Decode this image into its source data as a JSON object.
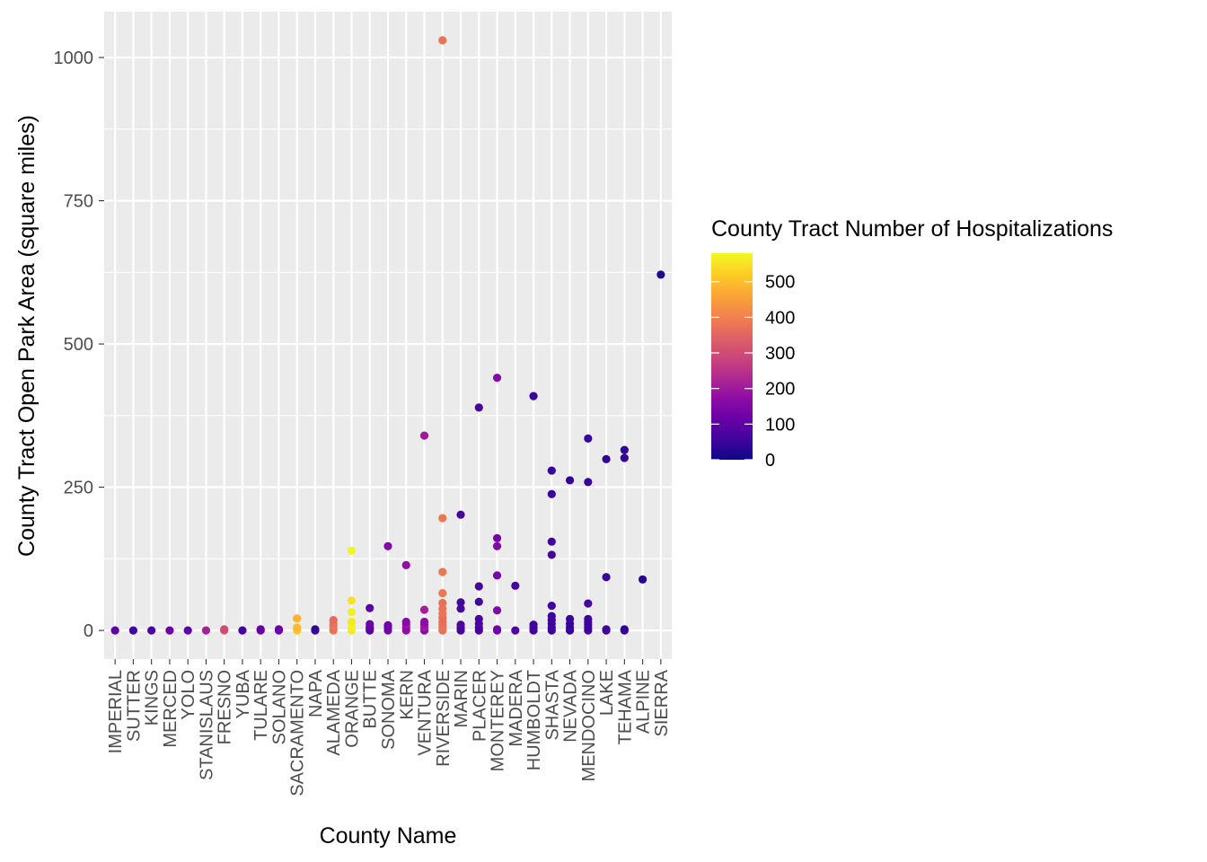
{
  "chart_data": {
    "type": "scatter",
    "xlabel": "County Name",
    "ylabel": "County Tract Open Park Area (square miles)",
    "ylim": [
      -50,
      1080
    ],
    "y_ticks": [
      0,
      250,
      500,
      750,
      1000
    ],
    "y_tick_labels": [
      "0",
      "250",
      "500",
      "750",
      "1000"
    ],
    "grid": true,
    "legend_position": "right",
    "categories": [
      "IMPERIAL",
      "SUTTER",
      "KINGS",
      "MERCED",
      "YOLO",
      "STANISLAUS",
      "FRESNO",
      "YUBA",
      "TULARE",
      "SOLANO",
      "SACRAMENTO",
      "NAPA",
      "ALAMEDA",
      "ORANGE",
      "BUTTE",
      "SONOMA",
      "KERN",
      "VENTURA",
      "RIVERSIDE",
      "MARIN",
      "PLACER",
      "MONTEREY",
      "MADERA",
      "HUMBOLDT",
      "SHASTA",
      "NEVADA",
      "MENDOCINO",
      "LAKE",
      "TEHAMA",
      "ALPINE",
      "SIERRA"
    ],
    "color_scale": {
      "title": "County Tract Number of Hospitalizations",
      "colormap": "plasma",
      "min": 0,
      "max": 580,
      "ticks": [
        0,
        100,
        200,
        300,
        400,
        500
      ],
      "tick_labels": [
        "0",
        "100",
        "200",
        "300",
        "400",
        "500"
      ]
    },
    "points": [
      {
        "c": "IMPERIAL",
        "y": 0,
        "h": 100
      },
      {
        "c": "SUTTER",
        "y": 0,
        "h": 60
      },
      {
        "c": "KINGS",
        "y": 0,
        "h": 70
      },
      {
        "c": "MERCED",
        "y": 0,
        "h": 120
      },
      {
        "c": "YOLO",
        "y": 0,
        "h": 100
      },
      {
        "c": "STANISLAUS",
        "y": 0,
        "h": 210
      },
      {
        "c": "FRESNO",
        "y": 0,
        "h": 320
      },
      {
        "c": "FRESNO",
        "y": 2,
        "h": 300
      },
      {
        "c": "YUBA",
        "y": 0,
        "h": 60
      },
      {
        "c": "TULARE",
        "y": 0,
        "h": 130
      },
      {
        "c": "TULARE",
        "y": 2,
        "h": 110
      },
      {
        "c": "SOLANO",
        "y": 0,
        "h": 140
      },
      {
        "c": "SOLANO",
        "y": 2,
        "h": 120
      },
      {
        "c": "SACRAMENTO",
        "y": 0,
        "h": 510
      },
      {
        "c": "SACRAMENTO",
        "y": 5,
        "h": 490
      },
      {
        "c": "SACRAMENTO",
        "y": 21,
        "h": 480
      },
      {
        "c": "NAPA",
        "y": 0,
        "h": 60
      },
      {
        "c": "NAPA",
        "y": 2,
        "h": 40
      },
      {
        "c": "ALAMEDA",
        "y": 0,
        "h": 380
      },
      {
        "c": "ALAMEDA",
        "y": 4,
        "h": 370
      },
      {
        "c": "ALAMEDA",
        "y": 8,
        "h": 385
      },
      {
        "c": "ALAMEDA",
        "y": 12,
        "h": 375
      },
      {
        "c": "ALAMEDA",
        "y": 18,
        "h": 360
      },
      {
        "c": "ORANGE",
        "y": 0,
        "h": 560
      },
      {
        "c": "ORANGE",
        "y": 5,
        "h": 570
      },
      {
        "c": "ORANGE",
        "y": 15,
        "h": 560
      },
      {
        "c": "ORANGE",
        "y": 32,
        "h": 565
      },
      {
        "c": "ORANGE",
        "y": 52,
        "h": 550
      },
      {
        "c": "ORANGE",
        "y": 139,
        "h": 575
      },
      {
        "c": "BUTTE",
        "y": 0,
        "h": 90
      },
      {
        "c": "BUTTE",
        "y": 3,
        "h": 80
      },
      {
        "c": "BUTTE",
        "y": 6,
        "h": 110
      },
      {
        "c": "BUTTE",
        "y": 11,
        "h": 120
      },
      {
        "c": "BUTTE",
        "y": 39,
        "h": 100
      },
      {
        "c": "SONOMA",
        "y": 0,
        "h": 140
      },
      {
        "c": "SONOMA",
        "y": 5,
        "h": 130
      },
      {
        "c": "SONOMA",
        "y": 9,
        "h": 120
      },
      {
        "c": "SONOMA",
        "y": 147,
        "h": 150
      },
      {
        "c": "KERN",
        "y": 0,
        "h": 180
      },
      {
        "c": "KERN",
        "y": 5,
        "h": 170
      },
      {
        "c": "KERN",
        "y": 10,
        "h": 190
      },
      {
        "c": "KERN",
        "y": 15,
        "h": 160
      },
      {
        "c": "KERN",
        "y": 114,
        "h": 175
      },
      {
        "c": "VENTURA",
        "y": 0,
        "h": 160
      },
      {
        "c": "VENTURA",
        "y": 5,
        "h": 200
      },
      {
        "c": "VENTURA",
        "y": 10,
        "h": 190
      },
      {
        "c": "VENTURA",
        "y": 15,
        "h": 170
      },
      {
        "c": "VENTURA",
        "y": 36,
        "h": 210
      },
      {
        "c": "VENTURA",
        "y": 340,
        "h": 200
      },
      {
        "c": "RIVERSIDE",
        "y": 0,
        "h": 370
      },
      {
        "c": "RIVERSIDE",
        "y": 5,
        "h": 380
      },
      {
        "c": "RIVERSIDE",
        "y": 10,
        "h": 375
      },
      {
        "c": "RIVERSIDE",
        "y": 15,
        "h": 370
      },
      {
        "c": "RIVERSIDE",
        "y": 22,
        "h": 365
      },
      {
        "c": "RIVERSIDE",
        "y": 30,
        "h": 380
      },
      {
        "c": "RIVERSIDE",
        "y": 38,
        "h": 375
      },
      {
        "c": "RIVERSIDE",
        "y": 48,
        "h": 370
      },
      {
        "c": "RIVERSIDE",
        "y": 65,
        "h": 385
      },
      {
        "c": "RIVERSIDE",
        "y": 102,
        "h": 380
      },
      {
        "c": "RIVERSIDE",
        "y": 196,
        "h": 380
      },
      {
        "c": "RIVERSIDE",
        "y": 1030,
        "h": 375
      },
      {
        "c": "MARIN",
        "y": 0,
        "h": 70
      },
      {
        "c": "MARIN",
        "y": 5,
        "h": 60
      },
      {
        "c": "MARIN",
        "y": 10,
        "h": 80
      },
      {
        "c": "MARIN",
        "y": 38,
        "h": 70
      },
      {
        "c": "MARIN",
        "y": 49,
        "h": 60
      },
      {
        "c": "MARIN",
        "y": 202,
        "h": 70
      },
      {
        "c": "PLACER",
        "y": 0,
        "h": 70
      },
      {
        "c": "PLACER",
        "y": 5,
        "h": 60
      },
      {
        "c": "PLACER",
        "y": 12,
        "h": 80
      },
      {
        "c": "PLACER",
        "y": 20,
        "h": 70
      },
      {
        "c": "PLACER",
        "y": 50,
        "h": 60
      },
      {
        "c": "PLACER",
        "y": 77,
        "h": 70
      },
      {
        "c": "PLACER",
        "y": 389,
        "h": 70
      },
      {
        "c": "MONTEREY",
        "y": 0,
        "h": 140
      },
      {
        "c": "MONTEREY",
        "y": 2,
        "h": 130
      },
      {
        "c": "MONTEREY",
        "y": 35,
        "h": 150
      },
      {
        "c": "MONTEREY",
        "y": 96,
        "h": 140
      },
      {
        "c": "MONTEREY",
        "y": 147,
        "h": 150
      },
      {
        "c": "MONTEREY",
        "y": 161,
        "h": 140
      },
      {
        "c": "MONTEREY",
        "y": 441,
        "h": 160
      },
      {
        "c": "MADERA",
        "y": 0,
        "h": 80
      },
      {
        "c": "MADERA",
        "y": 78,
        "h": 70
      },
      {
        "c": "HUMBOLDT",
        "y": 0,
        "h": 60
      },
      {
        "c": "HUMBOLDT",
        "y": 5,
        "h": 70
      },
      {
        "c": "HUMBOLDT",
        "y": 10,
        "h": 60
      },
      {
        "c": "HUMBOLDT",
        "y": 409,
        "h": 50
      },
      {
        "c": "SHASTA",
        "y": 0,
        "h": 50
      },
      {
        "c": "SHASTA",
        "y": 5,
        "h": 60
      },
      {
        "c": "SHASTA",
        "y": 12,
        "h": 50
      },
      {
        "c": "SHASTA",
        "y": 18,
        "h": 60
      },
      {
        "c": "SHASTA",
        "y": 25,
        "h": 50
      },
      {
        "c": "SHASTA",
        "y": 43,
        "h": 60
      },
      {
        "c": "SHASTA",
        "y": 132,
        "h": 70
      },
      {
        "c": "SHASTA",
        "y": 155,
        "h": 60
      },
      {
        "c": "SHASTA",
        "y": 238,
        "h": 50
      },
      {
        "c": "SHASTA",
        "y": 279,
        "h": 50
      },
      {
        "c": "NEVADA",
        "y": 0,
        "h": 40
      },
      {
        "c": "NEVADA",
        "y": 5,
        "h": 50
      },
      {
        "c": "NEVADA",
        "y": 12,
        "h": 40
      },
      {
        "c": "NEVADA",
        "y": 20,
        "h": 50
      },
      {
        "c": "NEVADA",
        "y": 262,
        "h": 40
      },
      {
        "c": "MENDOCINO",
        "y": 0,
        "h": 60
      },
      {
        "c": "MENDOCINO",
        "y": 5,
        "h": 50
      },
      {
        "c": "MENDOCINO",
        "y": 10,
        "h": 60
      },
      {
        "c": "MENDOCINO",
        "y": 15,
        "h": 50
      },
      {
        "c": "MENDOCINO",
        "y": 20,
        "h": 60
      },
      {
        "c": "MENDOCINO",
        "y": 47,
        "h": 70
      },
      {
        "c": "MENDOCINO",
        "y": 259,
        "h": 50
      },
      {
        "c": "MENDOCINO",
        "y": 335,
        "h": 50
      },
      {
        "c": "LAKE",
        "y": 0,
        "h": 50
      },
      {
        "c": "LAKE",
        "y": 2,
        "h": 60
      },
      {
        "c": "LAKE",
        "y": 93,
        "h": 50
      },
      {
        "c": "LAKE",
        "y": 299,
        "h": 40
      },
      {
        "c": "TEHAMA",
        "y": 0,
        "h": 50
      },
      {
        "c": "TEHAMA",
        "y": 2,
        "h": 40
      },
      {
        "c": "TEHAMA",
        "y": 301,
        "h": 40
      },
      {
        "c": "TEHAMA",
        "y": 315,
        "h": 40
      },
      {
        "c": "ALPINE",
        "y": 89,
        "h": 30
      },
      {
        "c": "SIERRA",
        "y": 621,
        "h": 20
      }
    ]
  }
}
